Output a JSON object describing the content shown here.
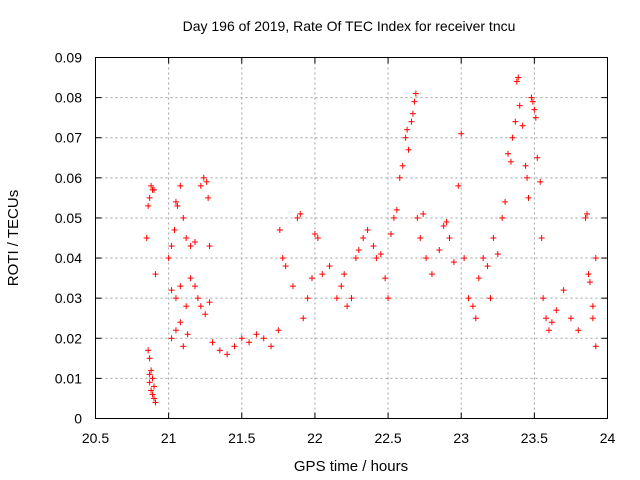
{
  "chart_data": {
    "type": "scatter",
    "title": "Day 196 of 2019, Rate Of TEC Index for receiver tncu",
    "xlabel": "GPS time / hours",
    "ylabel": "ROTI / TECUs",
    "xlim": [
      20.5,
      24
    ],
    "ylim": [
      0,
      0.09
    ],
    "x_ticks": [
      20.5,
      21,
      21.5,
      22,
      22.5,
      23,
      23.5,
      24
    ],
    "x_tick_labels": [
      "20.5",
      "21",
      "21.5",
      "22",
      "22.5",
      "23",
      "23.5",
      "24"
    ],
    "y_ticks": [
      0,
      0.01,
      0.02,
      0.03,
      0.04,
      0.05,
      0.06,
      0.07,
      0.08,
      0.09
    ],
    "y_tick_labels": [
      "0",
      "0.01",
      "0.02",
      "0.03",
      "0.04",
      "0.05",
      "0.06",
      "0.07",
      "0.08",
      "0.09"
    ],
    "grid": true,
    "marker": "plus",
    "series": [
      {
        "name": "ROTI",
        "color": "#ff0000",
        "points": [
          [
            20.85,
            0.045
          ],
          [
            20.86,
            0.017
          ],
          [
            20.87,
            0.015
          ],
          [
            20.86,
            0.053
          ],
          [
            20.87,
            0.055
          ],
          [
            20.88,
            0.058
          ],
          [
            20.89,
            0.057
          ],
          [
            20.9,
            0.057
          ],
          [
            20.91,
            0.036
          ],
          [
            20.87,
            0.009
          ],
          [
            20.88,
            0.007
          ],
          [
            20.89,
            0.006
          ],
          [
            20.9,
            0.005
          ],
          [
            20.91,
            0.004
          ],
          [
            20.88,
            0.012
          ],
          [
            20.89,
            0.01
          ],
          [
            20.9,
            0.008
          ],
          [
            20.87,
            0.011
          ],
          [
            21.0,
            0.04
          ],
          [
            21.02,
            0.043
          ],
          [
            21.04,
            0.047
          ],
          [
            21.05,
            0.054
          ],
          [
            21.06,
            0.053
          ],
          [
            21.08,
            0.058
          ],
          [
            21.1,
            0.05
          ],
          [
            21.12,
            0.045
          ],
          [
            21.15,
            0.043
          ],
          [
            21.18,
            0.044
          ],
          [
            21.22,
            0.058
          ],
          [
            21.24,
            0.06
          ],
          [
            21.26,
            0.059
          ],
          [
            21.27,
            0.055
          ],
          [
            21.28,
            0.043
          ],
          [
            21.02,
            0.032
          ],
          [
            21.05,
            0.03
          ],
          [
            21.08,
            0.033
          ],
          [
            21.12,
            0.028
          ],
          [
            21.15,
            0.035
          ],
          [
            21.18,
            0.033
          ],
          [
            21.2,
            0.03
          ],
          [
            21.22,
            0.028
          ],
          [
            21.25,
            0.026
          ],
          [
            21.28,
            0.029
          ],
          [
            21.02,
            0.02
          ],
          [
            21.05,
            0.022
          ],
          [
            21.08,
            0.024
          ],
          [
            21.1,
            0.018
          ],
          [
            21.13,
            0.021
          ],
          [
            21.3,
            0.019
          ],
          [
            21.35,
            0.017
          ],
          [
            21.4,
            0.016
          ],
          [
            21.45,
            0.018
          ],
          [
            21.5,
            0.02
          ],
          [
            21.55,
            0.019
          ],
          [
            21.6,
            0.021
          ],
          [
            21.65,
            0.02
          ],
          [
            21.7,
            0.018
          ],
          [
            21.75,
            0.022
          ],
          [
            21.76,
            0.047
          ],
          [
            21.78,
            0.04
          ],
          [
            21.8,
            0.038
          ],
          [
            21.85,
            0.033
          ],
          [
            21.88,
            0.05
          ],
          [
            21.9,
            0.051
          ],
          [
            21.92,
            0.025
          ],
          [
            21.95,
            0.03
          ],
          [
            21.98,
            0.035
          ],
          [
            22.0,
            0.046
          ],
          [
            22.02,
            0.045
          ],
          [
            22.05,
            0.036
          ],
          [
            22.1,
            0.038
          ],
          [
            22.15,
            0.03
          ],
          [
            22.18,
            0.033
          ],
          [
            22.2,
            0.036
          ],
          [
            22.22,
            0.028
          ],
          [
            22.25,
            0.03
          ],
          [
            22.28,
            0.04
          ],
          [
            22.3,
            0.042
          ],
          [
            22.33,
            0.045
          ],
          [
            22.36,
            0.047
          ],
          [
            22.4,
            0.043
          ],
          [
            22.42,
            0.04
          ],
          [
            22.45,
            0.041
          ],
          [
            22.48,
            0.035
          ],
          [
            22.5,
            0.03
          ],
          [
            22.52,
            0.046
          ],
          [
            22.54,
            0.05
          ],
          [
            22.56,
            0.052
          ],
          [
            22.58,
            0.06
          ],
          [
            22.6,
            0.063
          ],
          [
            22.62,
            0.07
          ],
          [
            22.63,
            0.072
          ],
          [
            22.64,
            0.067
          ],
          [
            22.66,
            0.074
          ],
          [
            22.67,
            0.076
          ],
          [
            22.68,
            0.079
          ],
          [
            22.69,
            0.081
          ],
          [
            22.7,
            0.05
          ],
          [
            22.72,
            0.045
          ],
          [
            22.74,
            0.051
          ],
          [
            22.76,
            0.04
          ],
          [
            22.8,
            0.036
          ],
          [
            22.85,
            0.042
          ],
          [
            22.88,
            0.048
          ],
          [
            22.9,
            0.049
          ],
          [
            22.92,
            0.045
          ],
          [
            22.95,
            0.039
          ],
          [
            22.98,
            0.058
          ],
          [
            23.0,
            0.071
          ],
          [
            23.02,
            0.04
          ],
          [
            23.05,
            0.03
          ],
          [
            23.08,
            0.028
          ],
          [
            23.1,
            0.025
          ],
          [
            23.12,
            0.035
          ],
          [
            23.15,
            0.04
          ],
          [
            23.18,
            0.038
          ],
          [
            23.2,
            0.03
          ],
          [
            23.22,
            0.045
          ],
          [
            23.25,
            0.041
          ],
          [
            23.28,
            0.05
          ],
          [
            23.3,
            0.054
          ],
          [
            23.32,
            0.066
          ],
          [
            23.34,
            0.064
          ],
          [
            23.35,
            0.07
          ],
          [
            23.37,
            0.074
          ],
          [
            23.38,
            0.084
          ],
          [
            23.39,
            0.085
          ],
          [
            23.4,
            0.078
          ],
          [
            23.42,
            0.073
          ],
          [
            23.44,
            0.063
          ],
          [
            23.45,
            0.06
          ],
          [
            23.46,
            0.055
          ],
          [
            23.48,
            0.08
          ],
          [
            23.49,
            0.079
          ],
          [
            23.5,
            0.077
          ],
          [
            23.51,
            0.075
          ],
          [
            23.52,
            0.065
          ],
          [
            23.54,
            0.059
          ],
          [
            23.55,
            0.045
          ],
          [
            23.56,
            0.03
          ],
          [
            23.58,
            0.025
          ],
          [
            23.6,
            0.022
          ],
          [
            23.62,
            0.024
          ],
          [
            23.65,
            0.027
          ],
          [
            23.7,
            0.032
          ],
          [
            23.75,
            0.025
          ],
          [
            23.8,
            0.022
          ],
          [
            23.85,
            0.05
          ],
          [
            23.86,
            0.051
          ],
          [
            23.87,
            0.036
          ],
          [
            23.88,
            0.034
          ],
          [
            23.9,
            0.028
          ],
          [
            23.92,
            0.04
          ],
          [
            23.9,
            0.025
          ],
          [
            23.92,
            0.018
          ]
        ]
      }
    ]
  }
}
